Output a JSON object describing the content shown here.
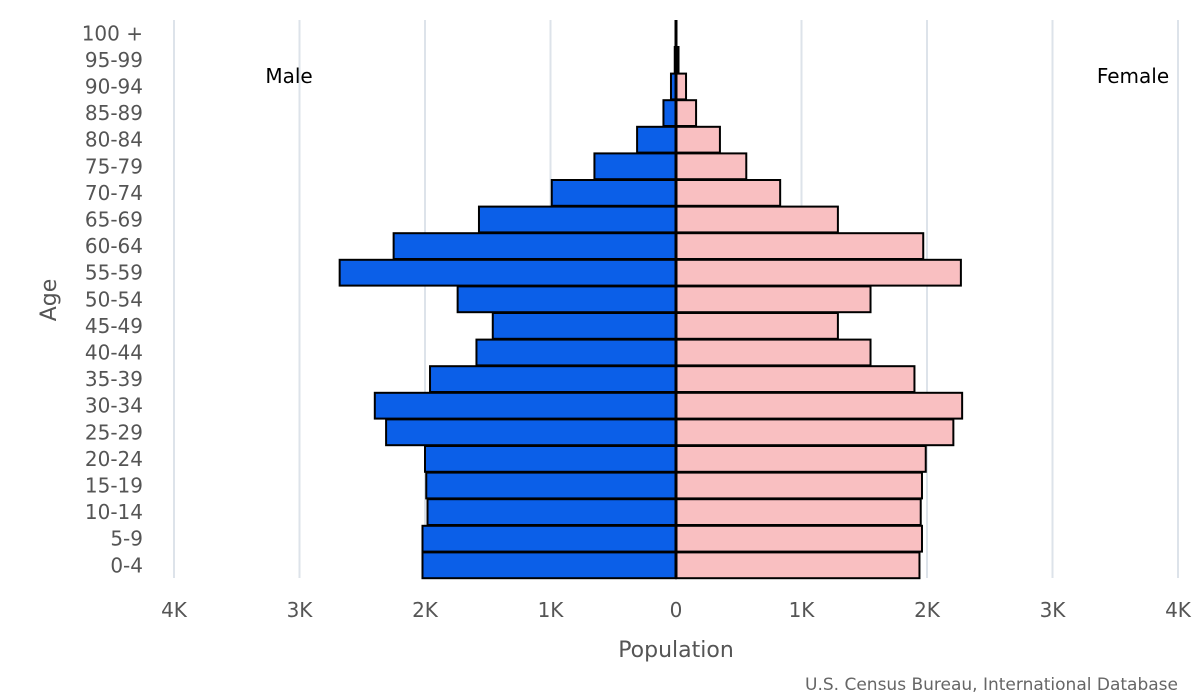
{
  "chart_data": {
    "type": "bar",
    "orientation": "horizontal",
    "layout": "population-pyramid",
    "categories": [
      "0-4",
      "5-9",
      "10-14",
      "15-19",
      "20-24",
      "25-29",
      "30-34",
      "35-39",
      "40-44",
      "45-49",
      "50-54",
      "55-59",
      "60-64",
      "65-69",
      "70-74",
      "75-79",
      "80-84",
      "85-89",
      "90-94",
      "95-99",
      "100 +"
    ],
    "series": [
      {
        "name": "Male",
        "color": "#0b5fe8",
        "values": [
          2020,
          2020,
          1980,
          1990,
          2000,
          2310,
          2400,
          1960,
          1590,
          1460,
          1740,
          2680,
          2250,
          1570,
          990,
          650,
          310,
          100,
          40,
          10,
          0
        ]
      },
      {
        "name": "Female",
        "color": "#f9bfc1",
        "values": [
          1940,
          1960,
          1950,
          1960,
          1990,
          2210,
          2280,
          1900,
          1550,
          1290,
          1550,
          2270,
          1970,
          1290,
          830,
          560,
          350,
          160,
          80,
          20,
          0
        ]
      }
    ],
    "xlabel": "Population",
    "ylabel": "Age",
    "xlim": [
      -4000,
      4000
    ],
    "x_ticks": [
      "4K",
      "3K",
      "2K",
      "1K",
      "0",
      "1K",
      "2K",
      "3K",
      "4K"
    ],
    "grid": "vertical",
    "side_labels": {
      "left": "Male",
      "right": "Female"
    },
    "credit": "U.S. Census Bureau, International Database"
  }
}
